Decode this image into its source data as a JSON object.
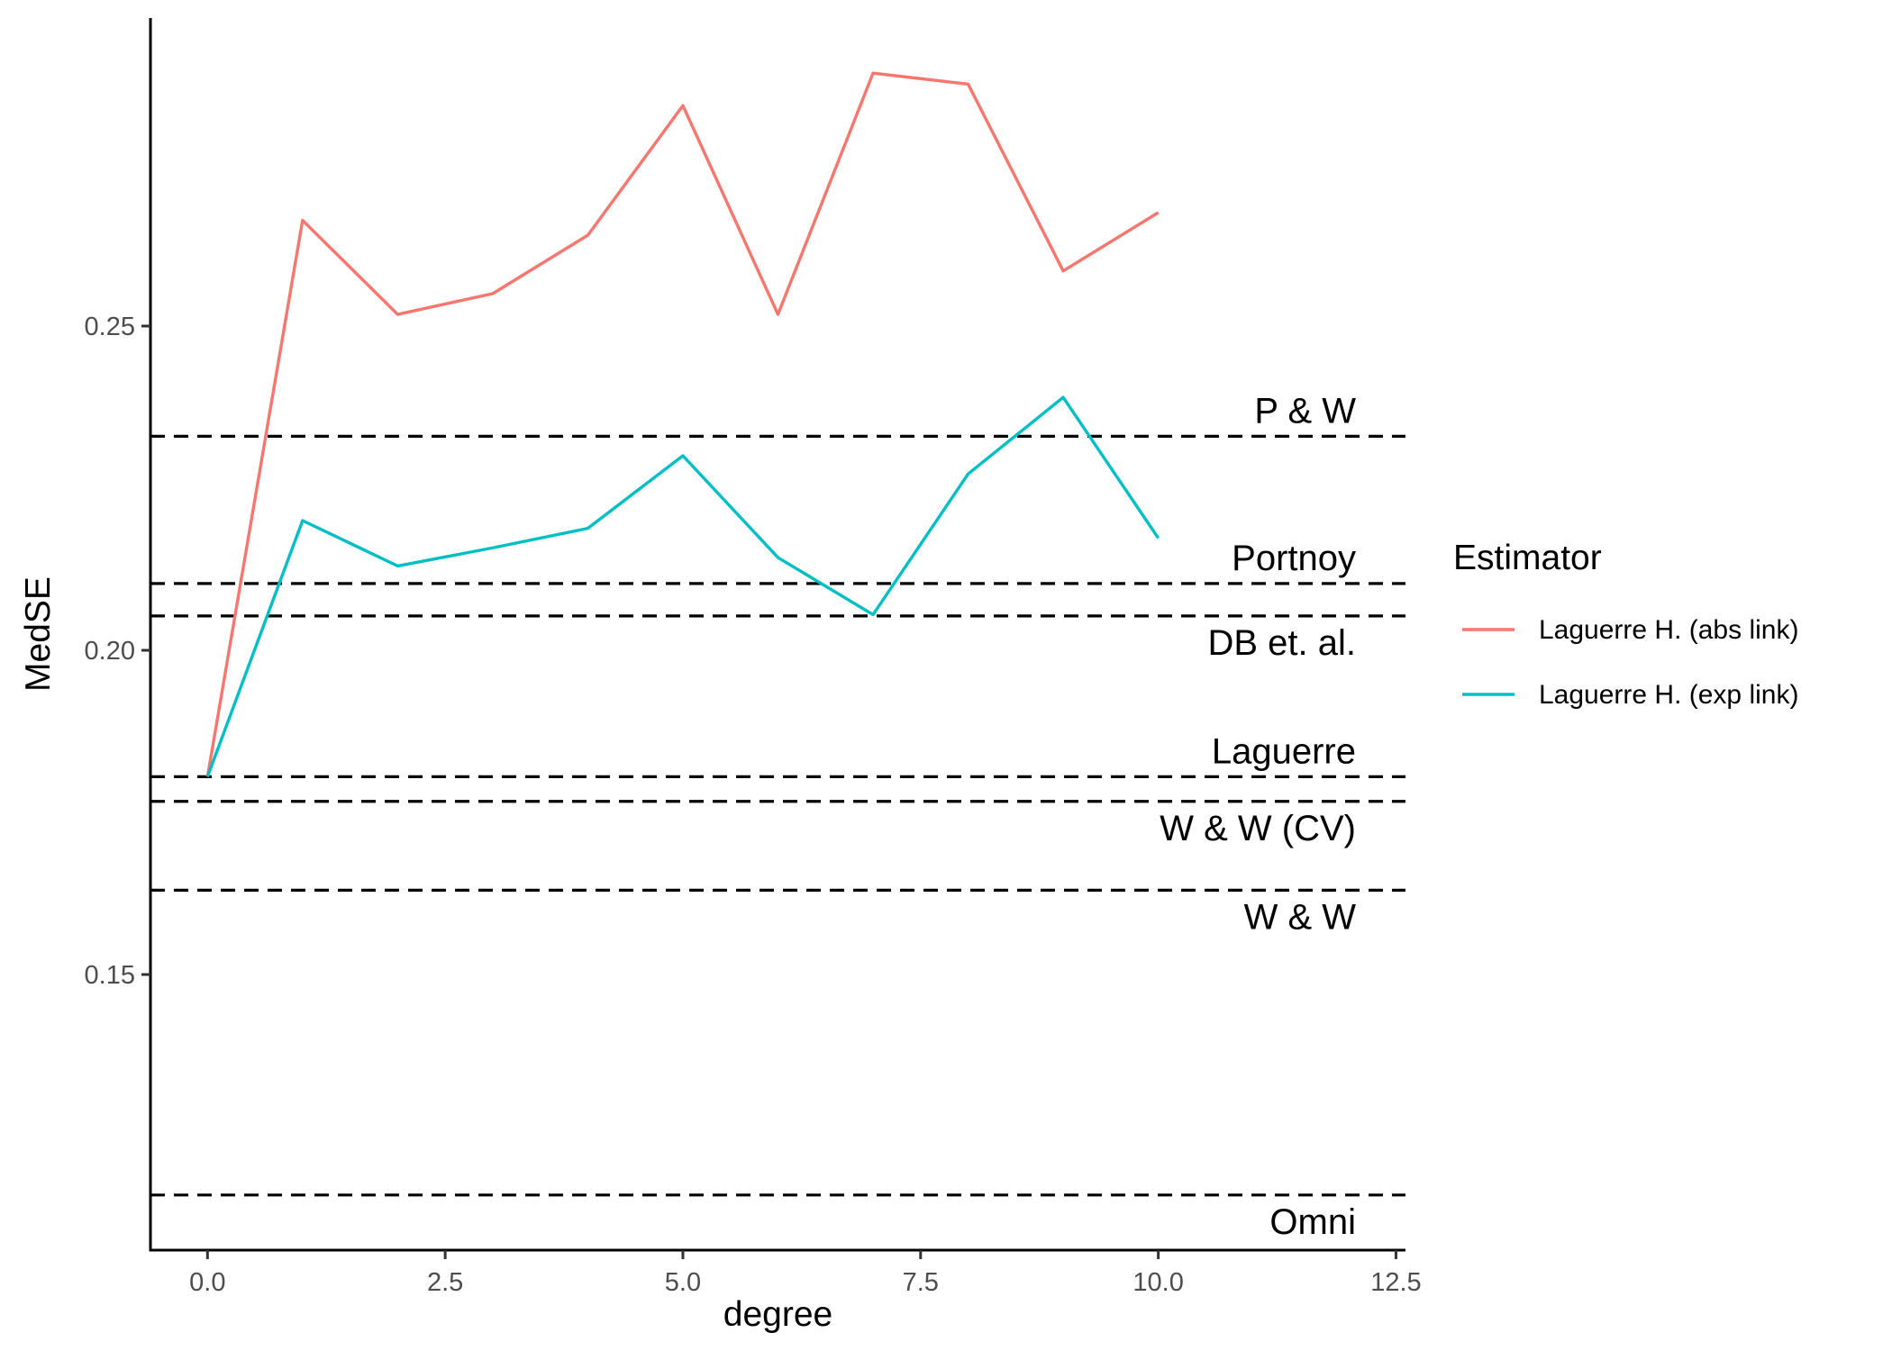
{
  "chart_data": {
    "type": "line",
    "xlabel": "degree",
    "ylabel": "MedSE",
    "xlim": [
      -0.6,
      12.6
    ],
    "ylim": [
      0.1075,
      0.2975
    ],
    "x_ticks": [
      {
        "value": 0,
        "label": "0.0"
      },
      {
        "value": 2.5,
        "label": "2.5"
      },
      {
        "value": 5,
        "label": "5.0"
      },
      {
        "value": 7.5,
        "label": "7.5"
      },
      {
        "value": 10,
        "label": "10.0"
      },
      {
        "value": 12.5,
        "label": "12.5"
      }
    ],
    "y_ticks": [
      {
        "value": 0.15,
        "label": "0.15"
      },
      {
        "value": 0.2,
        "label": "0.20"
      },
      {
        "value": 0.25,
        "label": "0.25"
      }
    ],
    "x": [
      0,
      1,
      2,
      3,
      4,
      5,
      6,
      7,
      8,
      9,
      10
    ],
    "series": [
      {
        "name": "Laguerre H. (abs link)",
        "color": "#F8766D",
        "values": [
          0.1805,
          0.2663,
          0.2518,
          0.255,
          0.264,
          0.284,
          0.2518,
          0.289,
          0.2873,
          0.2585,
          0.2675
        ]
      },
      {
        "name": "Laguerre H. (exp link)",
        "color": "#00BFC4",
        "values": [
          0.1805,
          0.22,
          0.213,
          0.2158,
          0.2188,
          0.23,
          0.2143,
          0.2055,
          0.2272,
          0.239,
          0.2173
        ]
      }
    ],
    "reference_lines": [
      {
        "label": "P & W",
        "value": 0.233,
        "label_position": "above"
      },
      {
        "label": "Portnoy",
        "value": 0.2103,
        "label_position": "above"
      },
      {
        "label": "DB et. al.",
        "value": 0.2053,
        "label_position": "below"
      },
      {
        "label": "Laguerre",
        "value": 0.1805,
        "label_position": "above"
      },
      {
        "label": "W & W (CV)",
        "value": 0.1767,
        "label_position": "below"
      },
      {
        "label": "W & W",
        "value": 0.163,
        "label_position": "below"
      },
      {
        "label": "Omni",
        "value": 0.116,
        "label_position": "below"
      }
    ],
    "legend": {
      "title": "Estimator",
      "position": "right"
    },
    "grid": false
  }
}
